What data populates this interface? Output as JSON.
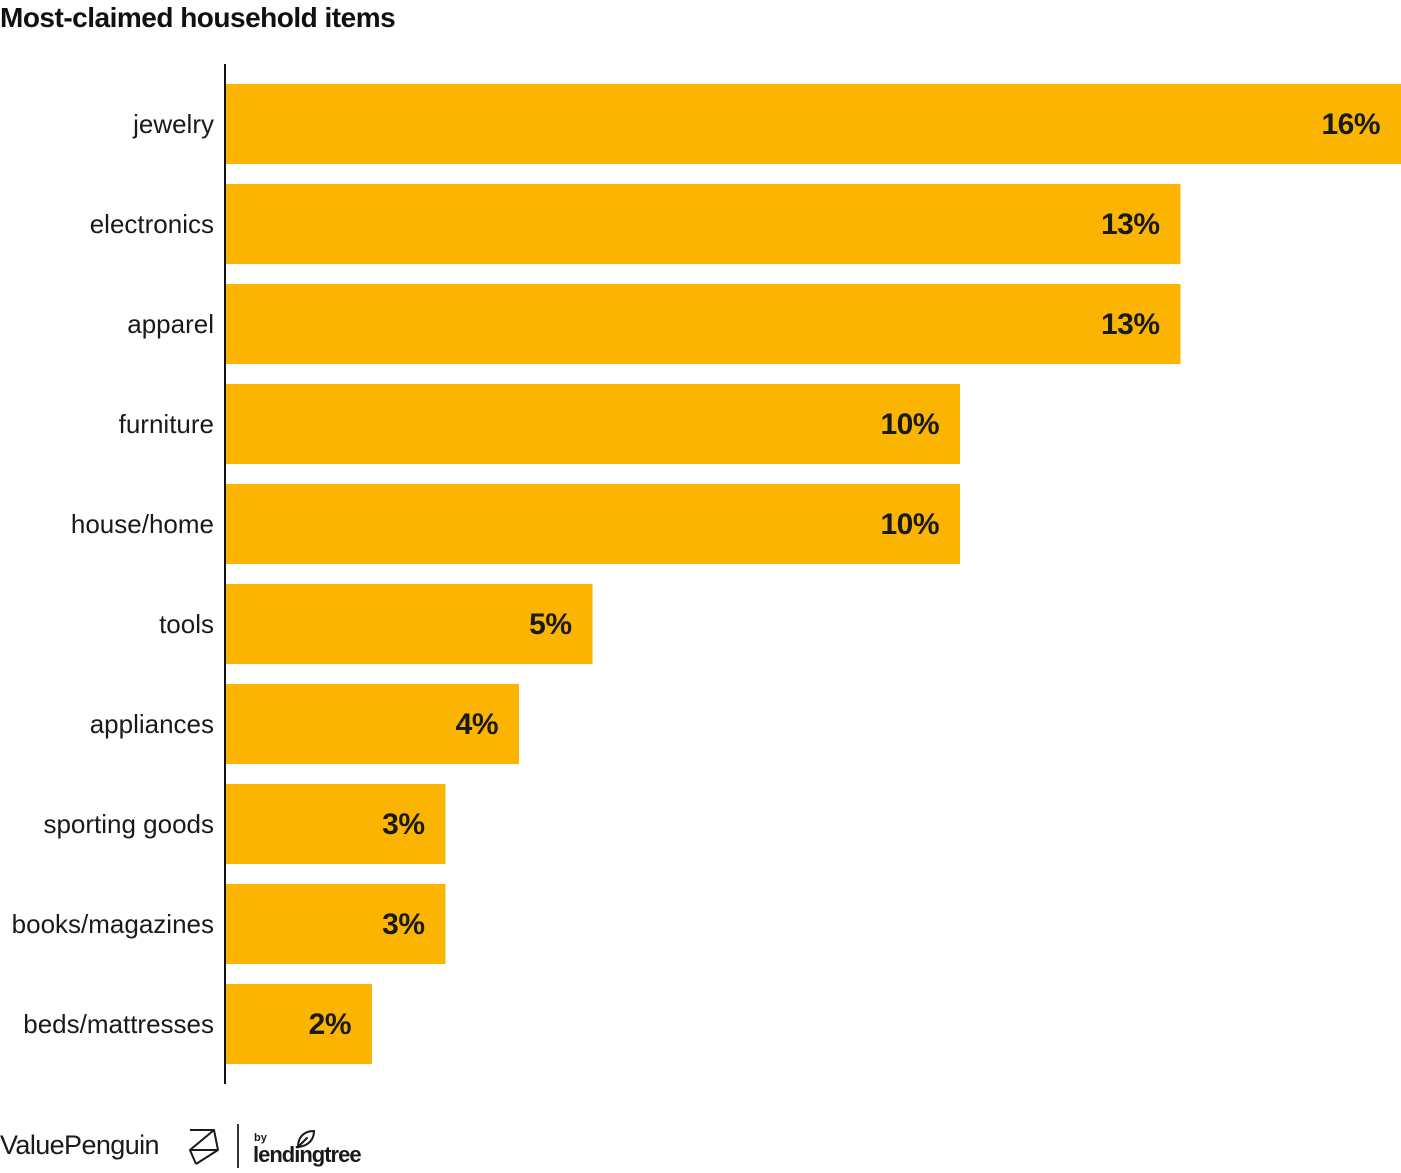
{
  "chart_data": {
    "type": "bar",
    "orientation": "horizontal",
    "title": "Most-claimed household items",
    "categories": [
      "jewelry",
      "electronics",
      "apparel",
      "furniture",
      "house/home",
      "tools",
      "appliances",
      "sporting goods",
      "books/magazines",
      "beds/mattresses"
    ],
    "values": [
      16,
      13,
      13,
      10,
      10,
      5,
      4,
      3,
      3,
      2
    ],
    "value_labels": [
      "16%",
      "13%",
      "13%",
      "10%",
      "10%",
      "5%",
      "4%",
      "3%",
      "3%",
      "2%"
    ],
    "unit": "%",
    "xlim": [
      0,
      16
    ],
    "xlabel": "",
    "ylabel": "",
    "grid": false,
    "legend": "none",
    "bar_color": "#FBB501",
    "label_color": "#1a1a1a"
  },
  "footer": {
    "brand": "ValuePenguin",
    "brand_icon": "valuepenguin-logo-icon",
    "by": "by",
    "partner": "lendingtree",
    "partner_icon": "lendingtree-leaf-icon"
  }
}
